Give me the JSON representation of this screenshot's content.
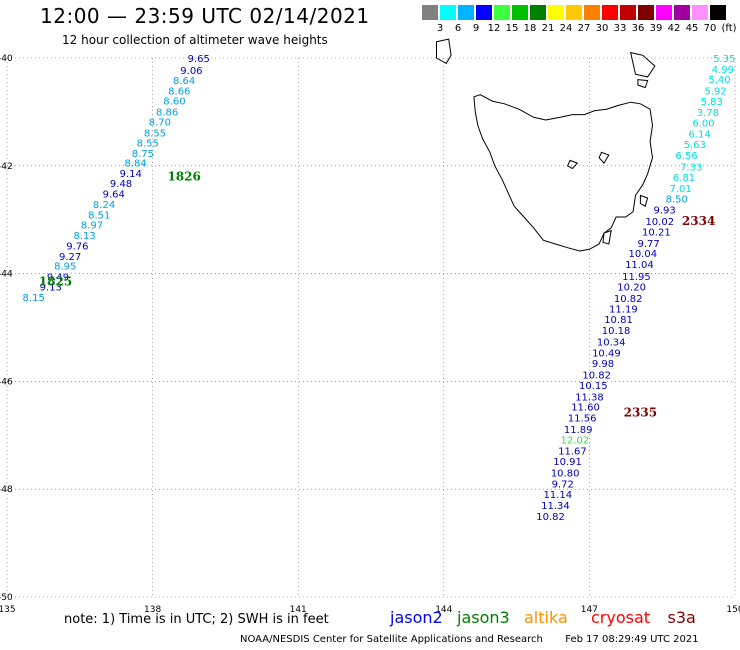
{
  "title": "12:00 — 23:59 UTC 02/14/2021",
  "subtitle": "12 hour collection of altimeter wave heights",
  "legend": {
    "unit": "(ft)",
    "levels": [
      {
        "label": "3",
        "color": "#808080"
      },
      {
        "label": "6",
        "color": "#00ffff"
      },
      {
        "label": "9",
        "color": "#00b4ff"
      },
      {
        "label": "12",
        "color": "#0000ff"
      },
      {
        "label": "15",
        "color": "#40ff40"
      },
      {
        "label": "18",
        "color": "#00c000"
      },
      {
        "label": "21",
        "color": "#008000"
      },
      {
        "label": "24",
        "color": "#ffff00"
      },
      {
        "label": "27",
        "color": "#ffc800"
      },
      {
        "label": "30",
        "color": "#ff8000"
      },
      {
        "label": "33",
        "color": "#ff0000"
      },
      {
        "label": "36",
        "color": "#c00000"
      },
      {
        "label": "39",
        "color": "#800000"
      },
      {
        "label": "42",
        "color": "#ff00ff"
      },
      {
        "label": "45",
        "color": "#a000a0"
      },
      {
        "label": "70",
        "color": "#ff90ff"
      },
      {
        "label": "",
        "color": "#000000"
      }
    ]
  },
  "map": {
    "lon_range": [
      135,
      150
    ],
    "lat_range": [
      -50,
      -40
    ],
    "lon_ticks": [
      "135",
      "138",
      "141",
      "144",
      "147",
      "150"
    ],
    "lat_ticks": [
      "-40",
      "-42",
      "-44",
      "-46",
      "-48",
      "-50"
    ],
    "land": "Tasmania",
    "coast_color": "#000000"
  },
  "tracks": [
    {
      "name": "track-west",
      "labels": [
        {
          "text": "1826",
          "color": "#008000",
          "lon": 138.65,
          "lat": -42.2
        },
        {
          "text": "1825",
          "color": "#008000",
          "lon": 136.0,
          "lat": -44.15
        }
      ],
      "points": [
        {
          "v": "9.65",
          "lon": 138.95,
          "lat": -40.0,
          "color": "#0000c0"
        },
        {
          "v": "9.06",
          "lon": 138.8,
          "lat": -40.22,
          "color": "#0000c0"
        },
        {
          "v": "8.64",
          "lon": 138.65,
          "lat": -40.41,
          "color": "#00a0e0"
        },
        {
          "v": "8.66",
          "lon": 138.55,
          "lat": -40.6,
          "color": "#00a0e0"
        },
        {
          "v": "8.60",
          "lon": 138.45,
          "lat": -40.79,
          "color": "#00a0e0"
        },
        {
          "v": "8.86",
          "lon": 138.3,
          "lat": -40.99,
          "color": "#00a0e0"
        },
        {
          "v": "8.70",
          "lon": 138.15,
          "lat": -41.18,
          "color": "#00a0e0"
        },
        {
          "v": "8.55",
          "lon": 138.05,
          "lat": -41.38,
          "color": "#00a0e0"
        },
        {
          "v": "8.55",
          "lon": 137.9,
          "lat": -41.57,
          "color": "#00a0e0"
        },
        {
          "v": "8.75",
          "lon": 137.8,
          "lat": -41.76,
          "color": "#00a0e0"
        },
        {
          "v": "8.84",
          "lon": 137.65,
          "lat": -41.94,
          "color": "#00a0e0"
        },
        {
          "v": "9.14",
          "lon": 137.55,
          "lat": -42.13,
          "color": "#0000c0"
        },
        {
          "v": "9.48",
          "lon": 137.35,
          "lat": -42.32,
          "color": "#0000c0"
        },
        {
          "v": "9.64",
          "lon": 137.2,
          "lat": -42.51,
          "color": "#0000c0"
        },
        {
          "v": "8.24",
          "lon": 137.0,
          "lat": -42.71,
          "color": "#00a0e0"
        },
        {
          "v": "8.51",
          "lon": 136.9,
          "lat": -42.9,
          "color": "#00a0e0"
        },
        {
          "v": "8.97",
          "lon": 136.75,
          "lat": -43.09,
          "color": "#00a0e0"
        },
        {
          "v": "8.13",
          "lon": 136.6,
          "lat": -43.28,
          "color": "#00a0e0"
        },
        {
          "v": "9.76",
          "lon": 136.45,
          "lat": -43.48,
          "color": "#0000c0"
        },
        {
          "v": "9.27",
          "lon": 136.3,
          "lat": -43.67,
          "color": "#0000c0"
        },
        {
          "v": "8.95",
          "lon": 136.2,
          "lat": -43.85,
          "color": "#00a0e0"
        },
        {
          "v": "9.49",
          "lon": 136.05,
          "lat": -44.05,
          "color": "#0000c0"
        },
        {
          "v": "9.13",
          "lon": 135.9,
          "lat": -44.24,
          "color": "#0000c0"
        },
        {
          "v": "8.15",
          "lon": 135.55,
          "lat": -44.43,
          "color": "#00a0e0"
        }
      ]
    },
    {
      "name": "track-east",
      "labels": [
        {
          "text": "2334",
          "color": "#800000",
          "lon": 149.25,
          "lat": -43.02
        },
        {
          "text": "2335",
          "color": "#800000",
          "lon": 148.05,
          "lat": -46.58
        }
      ],
      "points": [
        {
          "v": "5.35",
          "lon": 149.78,
          "lat": -40.0,
          "color": "#00e0e0"
        },
        {
          "v": "4.99",
          "lon": 149.75,
          "lat": -40.2,
          "color": "#00e0e0"
        },
        {
          "v": "5.40",
          "lon": 149.68,
          "lat": -40.39,
          "color": "#00e0e0"
        },
        {
          "v": "5.92",
          "lon": 149.6,
          "lat": -40.6,
          "color": "#00e0e0"
        },
        {
          "v": "5.83",
          "lon": 149.52,
          "lat": -40.8,
          "color": "#00e0e0"
        },
        {
          "v": "3.78",
          "lon": 149.44,
          "lat": -41.0,
          "color": "#00e0e0"
        },
        {
          "v": "6.00",
          "lon": 149.35,
          "lat": -41.2,
          "color": "#00e0e0"
        },
        {
          "v": "6.14",
          "lon": 149.27,
          "lat": -41.4,
          "color": "#00e0e0"
        },
        {
          "v": "5.63",
          "lon": 149.17,
          "lat": -41.6,
          "color": "#00e0e0"
        },
        {
          "v": "6.56",
          "lon": 149.0,
          "lat": -41.8,
          "color": "#00e0e0"
        },
        {
          "v": "7.33",
          "lon": 149.1,
          "lat": -42.01,
          "color": "#00e0e0"
        },
        {
          "v": "6.81",
          "lon": 148.95,
          "lat": -42.21,
          "color": "#00e0e0"
        },
        {
          "v": "7.01",
          "lon": 148.88,
          "lat": -42.41,
          "color": "#00e0e0"
        },
        {
          "v": "8.50",
          "lon": 148.8,
          "lat": -42.61,
          "color": "#00a0e0"
        },
        {
          "v": "9.93",
          "lon": 148.55,
          "lat": -42.81,
          "color": "#0000c0"
        },
        {
          "v": "10.02",
          "lon": 148.45,
          "lat": -43.02,
          "color": "#0000c0"
        },
        {
          "v": "10.21",
          "lon": 148.38,
          "lat": -43.22,
          "color": "#0000c0"
        },
        {
          "v": "9.77",
          "lon": 148.22,
          "lat": -43.43,
          "color": "#0000c0"
        },
        {
          "v": "10.04",
          "lon": 148.1,
          "lat": -43.62,
          "color": "#0000c0"
        },
        {
          "v": "11.04",
          "lon": 148.03,
          "lat": -43.82,
          "color": "#0000c0"
        },
        {
          "v": "11.95",
          "lon": 147.97,
          "lat": -44.04,
          "color": "#0000c0"
        },
        {
          "v": "10.20",
          "lon": 147.87,
          "lat": -44.24,
          "color": "#0000c0"
        },
        {
          "v": "10.82",
          "lon": 147.8,
          "lat": -44.45,
          "color": "#0000c0"
        },
        {
          "v": "11.19",
          "lon": 147.7,
          "lat": -44.65,
          "color": "#0000c0"
        },
        {
          "v": "10.81",
          "lon": 147.6,
          "lat": -44.84,
          "color": "#0000c0"
        },
        {
          "v": "10.18",
          "lon": 147.55,
          "lat": -45.05,
          "color": "#0000c0"
        },
        {
          "v": "10.34",
          "lon": 147.45,
          "lat": -45.26,
          "color": "#0000c0"
        },
        {
          "v": "10.49",
          "lon": 147.35,
          "lat": -45.46,
          "color": "#0000c0"
        },
        {
          "v": "9.98",
          "lon": 147.28,
          "lat": -45.66,
          "color": "#0000c0"
        },
        {
          "v": "10.82",
          "lon": 147.15,
          "lat": -45.87,
          "color": "#0000c0"
        },
        {
          "v": "10.15",
          "lon": 147.08,
          "lat": -46.07,
          "color": "#0000c0"
        },
        {
          "v": "11.38",
          "lon": 147.0,
          "lat": -46.28,
          "color": "#0000c0"
        },
        {
          "v": "11.60",
          "lon": 146.92,
          "lat": -46.47,
          "color": "#0000c0"
        },
        {
          "v": "11.56",
          "lon": 146.85,
          "lat": -46.67,
          "color": "#0000c0"
        },
        {
          "v": "11.89",
          "lon": 146.77,
          "lat": -46.88,
          "color": "#0000c0"
        },
        {
          "v": "12.02",
          "lon": 146.7,
          "lat": -47.08,
          "color": "#40e040"
        },
        {
          "v": "11.67",
          "lon": 146.65,
          "lat": -47.28,
          "color": "#0000c0"
        },
        {
          "v": "10.91",
          "lon": 146.55,
          "lat": -47.48,
          "color": "#0000c0"
        },
        {
          "v": "10.80",
          "lon": 146.5,
          "lat": -47.69,
          "color": "#0000c0"
        },
        {
          "v": "9.72",
          "lon": 146.45,
          "lat": -47.89,
          "color": "#0000c0"
        },
        {
          "v": "11.14",
          "lon": 146.35,
          "lat": -48.09,
          "color": "#0000c0"
        },
        {
          "v": "11.34",
          "lon": 146.3,
          "lat": -48.29,
          "color": "#0000c0"
        },
        {
          "v": "10.82",
          "lon": 146.2,
          "lat": -48.5,
          "color": "#0000c0"
        }
      ]
    }
  ],
  "note": "note: 1) Time is in UTC; 2) SWH is in feet",
  "satellites": [
    {
      "name": "jason2",
      "color": "#0000ff"
    },
    {
      "name": "jason3",
      "color": "#008000"
    },
    {
      "name": "altika",
      "color": "#ff9000"
    },
    {
      "name": "cryosat",
      "color": "#ff0000"
    },
    {
      "name": "s3a",
      "color": "#800000"
    }
  ],
  "footer": {
    "center": "NOAA/NESDIS Center for Satellite Applications and Research",
    "timestamp": "Feb 17 08:29:49 UTC 2021"
  }
}
